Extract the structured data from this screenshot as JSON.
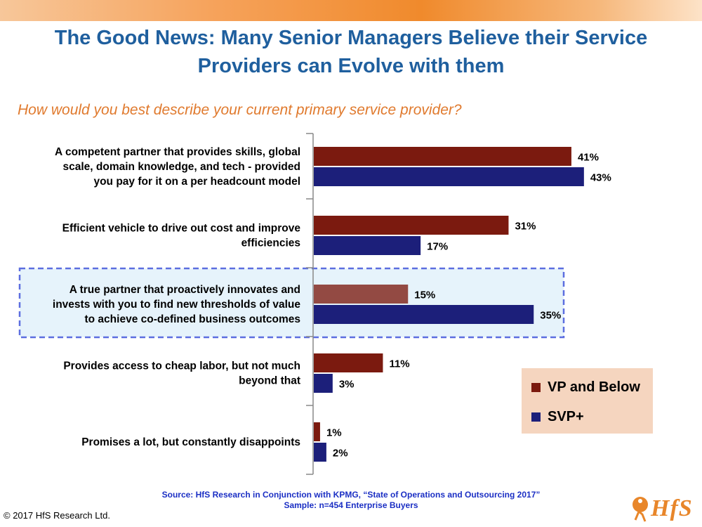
{
  "title_line1": "The Good News: Many Senior Managers Believe their Service",
  "title_line2": "Providers can Evolve with them",
  "question": "How would you best describe your current primary service provider?",
  "legend": [
    {
      "label": "VP and Below",
      "color": "#7b1a0f"
    },
    {
      "label": "SVP+",
      "color": "#1c1f7a"
    }
  ],
  "highlight_color": "#5c6ee0",
  "highlight_fill": "#e6f3fb",
  "source_line1": "Source: HfS Research in Conjunction with KPMG, “State of Operations and Outsourcing 2017”",
  "source_line2": "Sample: n=454 Enterprise Buyers",
  "copyright": "© 2017 HfS Research Ltd.",
  "logo_text": "HfS",
  "chart_data": {
    "type": "bar",
    "orientation": "horizontal",
    "title": "How would you best describe your current primary service provider?",
    "categories": [
      [
        "A competent partner that provides skills, global",
        "scale, domain knowledge, and tech - provided",
        "you pay for it on a per headcount model"
      ],
      [
        "Efficient vehicle to drive out cost and improve",
        "efficiencies"
      ],
      [
        "A true partner that proactively innovates and",
        "invests with you to find new thresholds of value",
        "to achieve co-defined business outcomes"
      ],
      [
        "Provides access to cheap labor, but not much",
        "beyond that"
      ],
      [
        "Promises a lot, but constantly disappoints"
      ]
    ],
    "series": [
      {
        "name": "VP and Below",
        "values": [
          41,
          31,
          15,
          11,
          1
        ],
        "labels": [
          "41%",
          "31%",
          "15%",
          "11%",
          "1%"
        ],
        "color": "#7b1a0f"
      },
      {
        "name": "SVP+",
        "values": [
          43,
          17,
          35,
          3,
          2
        ],
        "labels": [
          "43%",
          "17%",
          "35%",
          "3%",
          "2%"
        ],
        "color": "#1c1f7a"
      }
    ],
    "highlighted_category_index": 2,
    "xlim": [
      0,
      50
    ],
    "grid": false,
    "legend_position": "right"
  }
}
